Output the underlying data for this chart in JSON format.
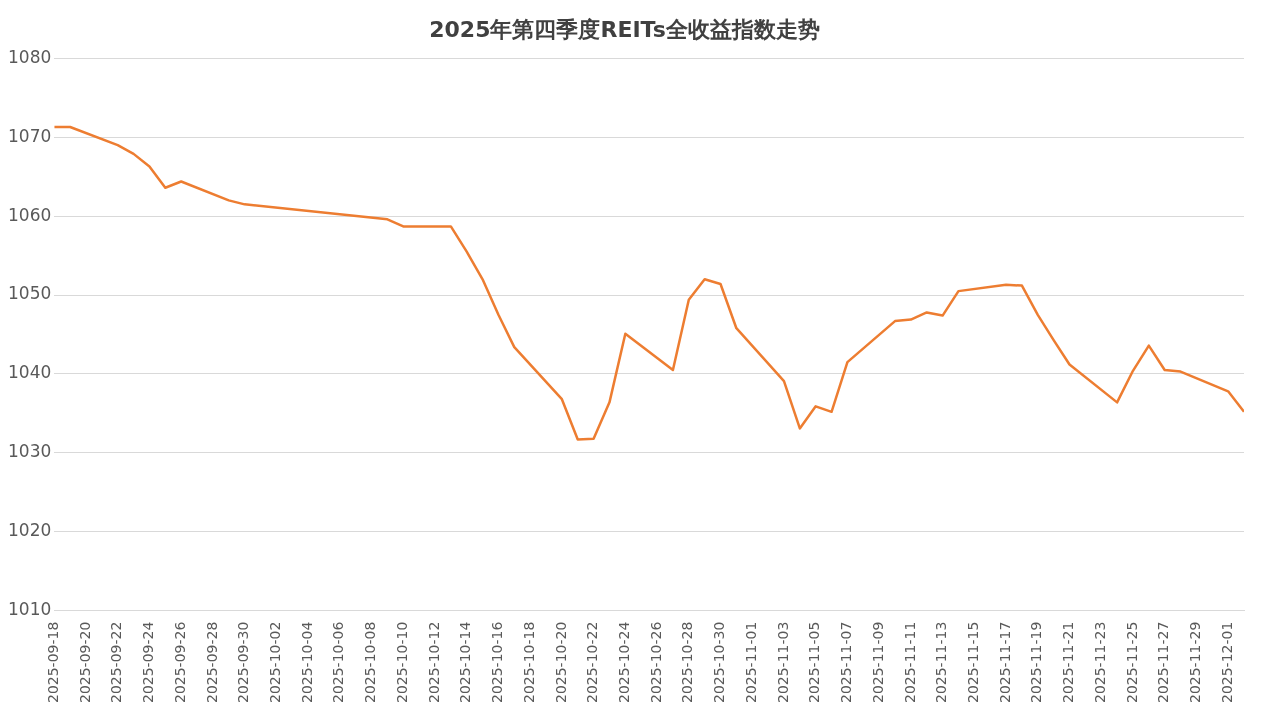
{
  "chart_data": {
    "type": "line",
    "title": "2025年第四季度REITs全收益指数走势",
    "x": [
      "2025-09-18",
      "2025-09-19",
      "2025-09-22",
      "2025-09-23",
      "2025-09-24",
      "2025-09-25",
      "2025-09-26",
      "2025-09-29",
      "2025-09-30",
      "2025-10-09",
      "2025-10-10",
      "2025-10-13",
      "2025-10-14",
      "2025-10-15",
      "2025-10-16",
      "2025-10-17",
      "2025-10-20",
      "2025-10-21",
      "2025-10-22",
      "2025-10-23",
      "2025-10-24",
      "2025-10-27",
      "2025-10-28",
      "2025-10-29",
      "2025-10-30",
      "2025-10-31",
      "2025-11-03",
      "2025-11-04",
      "2025-11-05",
      "2025-11-06",
      "2025-11-07",
      "2025-11-10",
      "2025-11-11",
      "2025-11-12",
      "2025-11-13",
      "2025-11-14",
      "2025-11-17",
      "2025-11-18",
      "2025-11-19",
      "2025-11-20",
      "2025-11-21",
      "2025-11-24",
      "2025-11-25",
      "2025-11-26",
      "2025-11-27",
      "2025-11-28",
      "2025-12-01",
      "2025-12-02"
    ],
    "series": [
      {
        "color": "#ed7d31",
        "values": [
          1071.3,
          1071.3,
          1069,
          1067.9,
          1066.3,
          1063.6,
          1064.4,
          1062,
          1061.5,
          1059.6,
          1058.7,
          1058.7,
          1055.5,
          1052,
          1047.5,
          1043.4,
          1036.8,
          1031.7,
          1031.8,
          1036.4,
          1045.1,
          1040.5,
          1049.4,
          1052,
          1051.4,
          1045.8,
          1039.1,
          1033.1,
          1035.9,
          1035.2,
          1041.5,
          1046.7,
          1046.9,
          1047.8,
          1047.4,
          1050.5,
          1051.3,
          1051.2,
          1047.5,
          1044.3,
          1041.2,
          1036.4,
          1040.4,
          1043.6,
          1040.5,
          1040.3,
          1037.8,
          1035.2
        ]
      }
    ],
    "xlim": [
      "2025-09-18",
      "2025-12-02"
    ],
    "xticks": [
      "2025-09-18",
      "2025-09-20",
      "2025-09-22",
      "2025-09-24",
      "2025-09-26",
      "2025-09-28",
      "2025-09-30",
      "2025-10-02",
      "2025-10-04",
      "2025-10-06",
      "2025-10-08",
      "2025-10-10",
      "2025-10-12",
      "2025-10-14",
      "2025-10-16",
      "2025-10-18",
      "2025-10-20",
      "2025-10-22",
      "2025-10-24",
      "2025-10-26",
      "2025-10-28",
      "2025-10-30",
      "2025-11-01",
      "2025-11-03",
      "2025-11-05",
      "2025-11-07",
      "2025-11-09",
      "2025-11-11",
      "2025-11-13",
      "2025-11-15",
      "2025-11-17",
      "2025-11-19",
      "2025-11-21",
      "2025-11-23",
      "2025-11-25",
      "2025-11-27",
      "2025-11-29",
      "2025-12-01"
    ],
    "ylim": [
      1010,
      1080
    ],
    "yticks": [
      1010,
      1020,
      1030,
      1040,
      1050,
      1060,
      1070,
      1080
    ],
    "grid": "y",
    "legend": false,
    "marker": "none",
    "line_style": "solid"
  }
}
